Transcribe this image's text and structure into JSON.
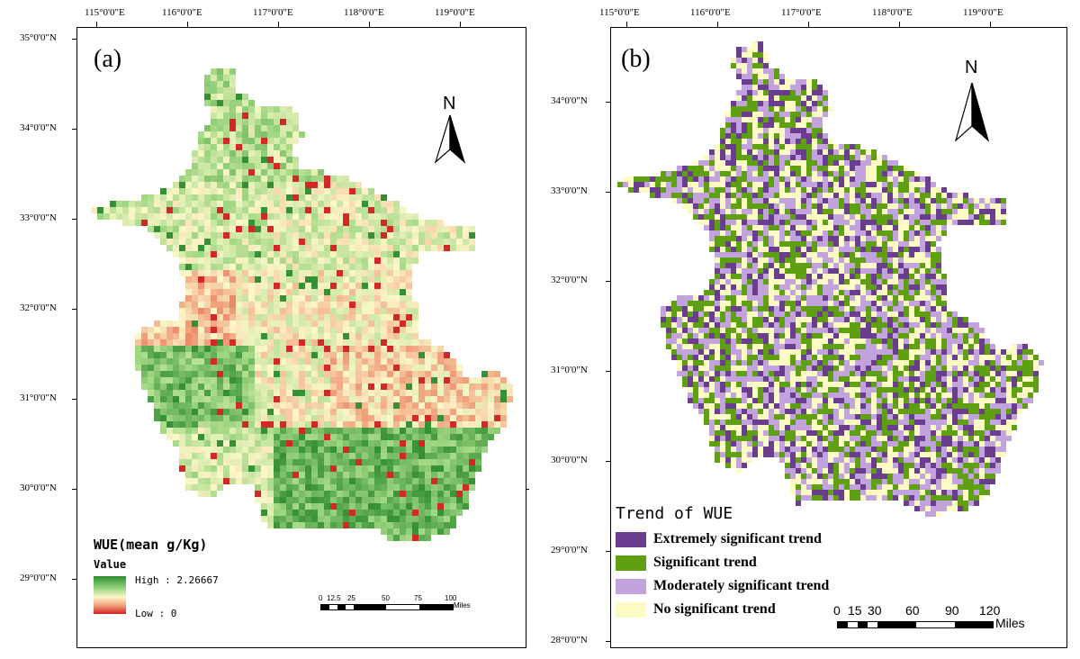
{
  "panel_a": {
    "letter": "(a)",
    "lon_labels": [
      "115°0'0\"E",
      "116°0'0\"E",
      "117°0'0\"E",
      "118°0'0\"E",
      "119°0'0\"E"
    ],
    "lat_labels": [
      "35°0'0\"N",
      "34°0'0\"N",
      "33°0'0\"N",
      "32°0'0\"N",
      "31°0'0\"N",
      "30°0'0\"N",
      "29°0'0\"N"
    ],
    "north_label": "N",
    "legend": {
      "title": "WUE(mean g/Kg)",
      "subtitle": "Value",
      "high_label": "High : 2.26667",
      "low_label": "Low : 0",
      "high_color": "#2e8b2e",
      "low_color": "#d11f1f"
    },
    "scale": {
      "ticks": [
        "0",
        "12.5",
        "25",
        "50",
        "75",
        "100"
      ],
      "unit": "Miles"
    }
  },
  "panel_b": {
    "letter": "(b)",
    "lon_labels": [
      "115°0'0\"E",
      "116°0'0\"E",
      "117°0'0\"E",
      "118°0'0\"E",
      "119°0'0\"E"
    ],
    "lat_labels": [
      "34°0'0\"N",
      "33°0'0\"N",
      "32°0'0\"N",
      "31°0'0\"N",
      "30°0'0\"N",
      "29°0'0\"N",
      "28°0'0\"N"
    ],
    "north_label": "N",
    "legend": {
      "title": "Trend of WUE",
      "items": [
        {
          "label": "Extremely significant trend",
          "color": "#6a3d8f"
        },
        {
          "label": "Significant trend",
          "color": "#5fa012"
        },
        {
          "label": "Moderately significant trend",
          "color": "#c3a3dd"
        },
        {
          "label": "No significant trend",
          "color": "#fdfbc4"
        }
      ]
    },
    "scale": {
      "ticks": [
        "0",
        "15",
        "30",
        "60",
        "90",
        "120"
      ],
      "unit": "Miles"
    }
  }
}
